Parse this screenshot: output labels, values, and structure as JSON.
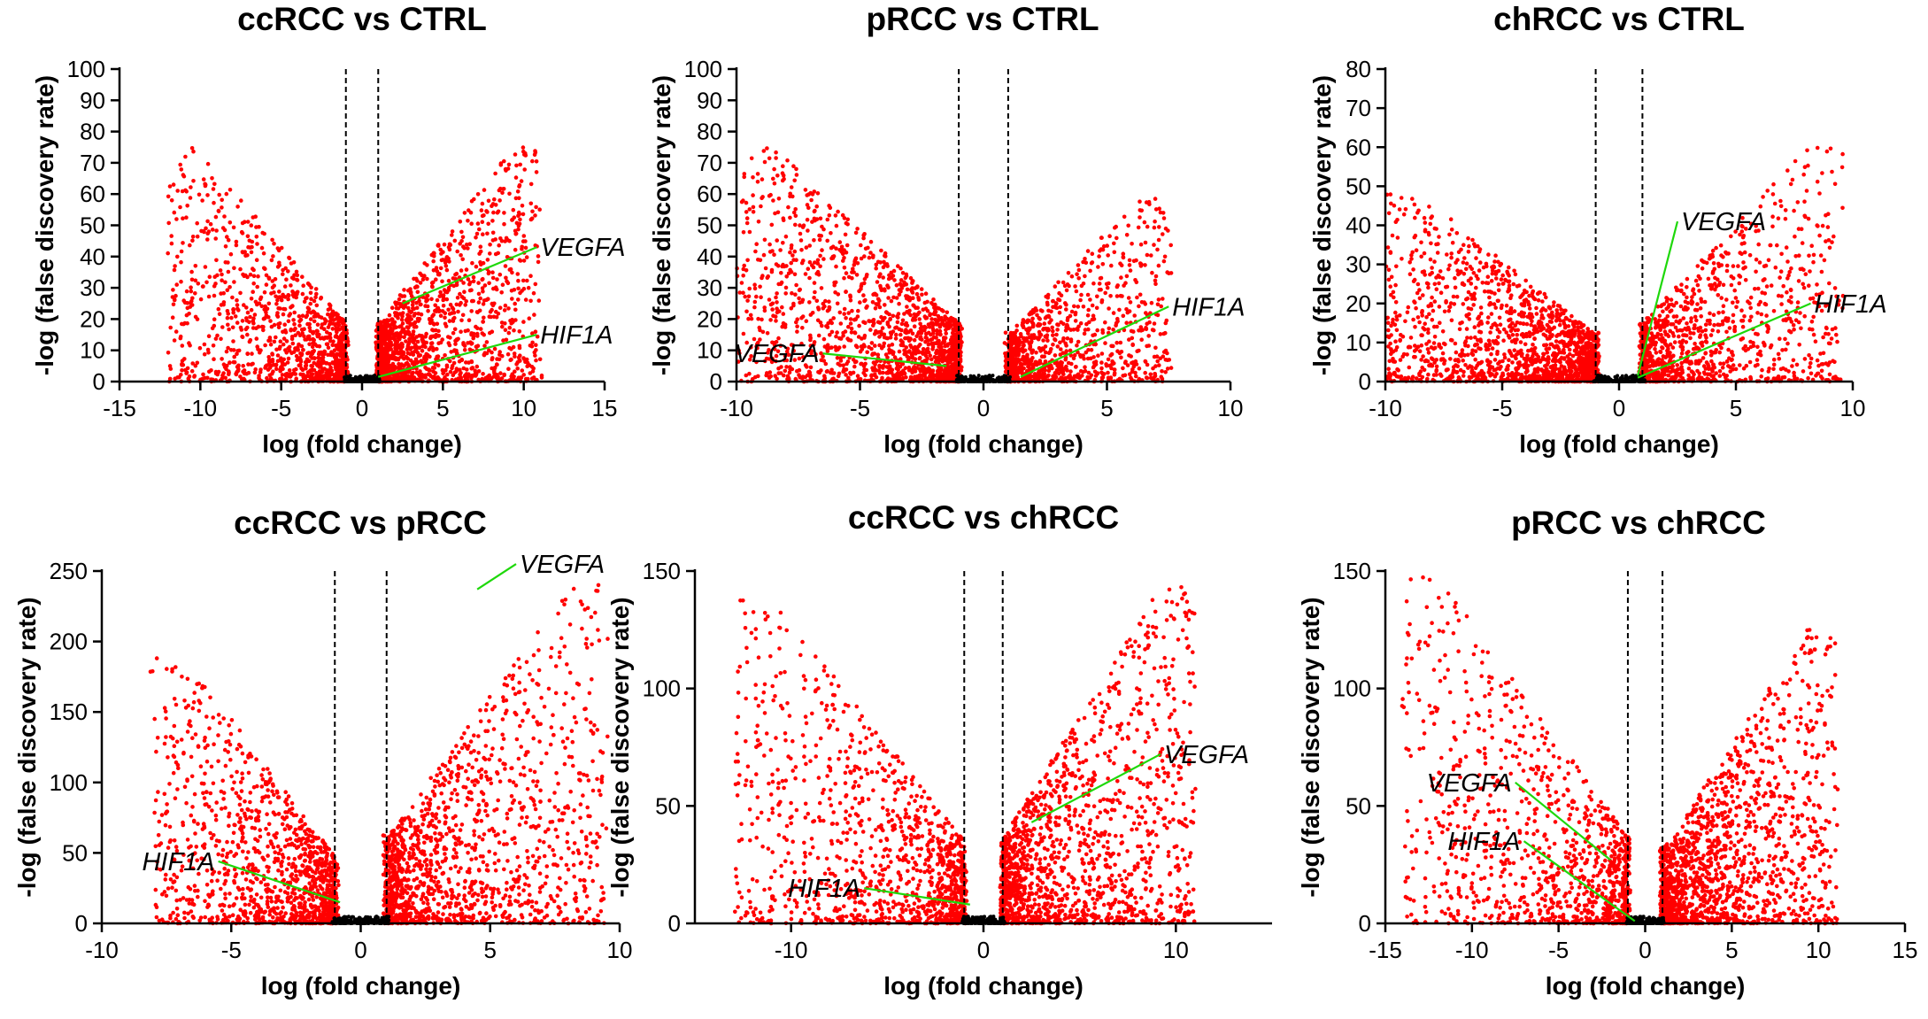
{
  "colors": {
    "significant": "#ff0000",
    "nonsignificant": "#000000",
    "leader": "#1ed80a"
  },
  "chart_data": [
    {
      "type": "scatter",
      "title": "ccRCC vs CTRL",
      "xlabel": "log (fold change)",
      "ylabel": "-log (false discovery rate)",
      "xlim": [
        -15,
        15
      ],
      "ylim": [
        0,
        100
      ],
      "xticks": [
        -15,
        -10,
        -5,
        0,
        5,
        10,
        15
      ],
      "yticks": [
        0,
        10,
        20,
        30,
        40,
        50,
        60,
        70,
        80,
        90,
        100
      ],
      "fc_cutoffs": [
        -1,
        1
      ],
      "distribution": {
        "left_x_range": [
          -12,
          -1
        ],
        "right_x_range": [
          1,
          11
        ],
        "left_ymax": 75,
        "right_ymax": 75,
        "left_density": 0.42,
        "right_density": 0.58
      },
      "annotations": [
        {
          "label": "VEGFA",
          "point": [
            2.5,
            25
          ],
          "label_at": [
            10.8,
            43
          ]
        },
        {
          "label": "HIF1A",
          "point": [
            1.0,
            1.5
          ],
          "label_at": [
            10.8,
            15
          ]
        }
      ]
    },
    {
      "type": "scatter",
      "title": "pRCC vs CTRL",
      "xlabel": "log (fold change)",
      "ylabel": "-log (false discovery rate)",
      "xlim": [
        -10,
        10
      ],
      "ylim": [
        0,
        100
      ],
      "xticks": [
        -10,
        -5,
        0,
        5,
        10
      ],
      "yticks": [
        0,
        10,
        20,
        30,
        40,
        50,
        60,
        70,
        80,
        90,
        100
      ],
      "fc_cutoffs": [
        -1,
        1
      ],
      "distribution": {
        "left_x_range": [
          -10,
          -1
        ],
        "right_x_range": [
          1,
          7.5
        ],
        "left_ymax": 75,
        "right_ymax": 60,
        "left_density": 0.6,
        "right_density": 0.4
      },
      "annotations": [
        {
          "label": "VEGFA",
          "point": [
            -1.5,
            5
          ],
          "label_at": [
            -6.5,
            9
          ]
        },
        {
          "label": "HIF1A",
          "point": [
            1.5,
            1.5
          ],
          "label_at": [
            7.5,
            24
          ]
        }
      ]
    },
    {
      "type": "scatter",
      "title": "chRCC vs CTRL",
      "xlabel": "log (fold change)",
      "ylabel": "-log (false discovery rate)",
      "xlim": [
        -10,
        10
      ],
      "ylim": [
        0,
        80
      ],
      "xticks": [
        -10,
        -5,
        0,
        5,
        10
      ],
      "yticks": [
        0,
        10,
        20,
        30,
        40,
        50,
        60,
        70,
        80
      ],
      "fc_cutoffs": [
        -1,
        1
      ],
      "distribution": {
        "left_x_range": [
          -10,
          -1
        ],
        "right_x_range": [
          1,
          9.5
        ],
        "left_ymax": 48,
        "right_ymax": 60,
        "left_density": 0.6,
        "right_density": 0.4
      },
      "annotations": [
        {
          "label": "VEGFA",
          "point": [
            0.8,
            1.5
          ],
          "label_at": [
            2.5,
            41
          ]
        },
        {
          "label": "HIF1A",
          "point": [
            0.8,
            1.0
          ],
          "label_at": [
            8.2,
            20
          ]
        }
      ]
    },
    {
      "type": "scatter",
      "title": "ccRCC vs pRCC",
      "xlabel": "log (fold change)",
      "ylabel": "-log (false discovery rate)",
      "xlim": [
        -10,
        10
      ],
      "ylim": [
        0,
        250
      ],
      "xticks": [
        -10,
        -5,
        0,
        5,
        10
      ],
      "yticks": [
        0,
        50,
        100,
        150,
        200,
        250
      ],
      "fc_cutoffs": [
        -1,
        1
      ],
      "distribution": {
        "left_x_range": [
          -8,
          -1
        ],
        "right_x_range": [
          1,
          9.5
        ],
        "left_ymax": 190,
        "right_ymax": 240,
        "left_density": 0.45,
        "right_density": 0.55
      },
      "annotations": [
        {
          "label": "VEGFA",
          "point": [
            4.5,
            237
          ],
          "label_at": [
            6,
            255
          ]
        },
        {
          "label": "HIF1A",
          "point": [
            -0.8,
            15
          ],
          "label_at": [
            -5.5,
            44
          ]
        }
      ]
    },
    {
      "type": "scatter",
      "title": "ccRCC vs chRCC",
      "xlabel": "log (fold change)",
      "ylabel": "-log (false discovery rate)",
      "xlim": [
        -15,
        15
      ],
      "ylim": [
        0,
        150
      ],
      "xticks": [
        -10,
        0,
        10
      ],
      "yticks": [
        0,
        50,
        100,
        150
      ],
      "fc_cutoffs": [
        -1,
        1
      ],
      "distribution": {
        "left_x_range": [
          -13,
          -1
        ],
        "right_x_range": [
          1,
          11
        ],
        "left_ymax": 140,
        "right_ymax": 145,
        "left_density": 0.45,
        "right_density": 0.55
      },
      "annotations": [
        {
          "label": "VEGFA",
          "point": [
            2.5,
            43
          ],
          "label_at": [
            9.2,
            72
          ]
        },
        {
          "label": "HIF1A",
          "point": [
            -0.7,
            8
          ],
          "label_at": [
            -6.2,
            15
          ]
        }
      ]
    },
    {
      "type": "scatter",
      "title": "pRCC vs chRCC",
      "xlabel": "log (fold change)",
      "ylabel": "-log (false discovery rate)",
      "xlim": [
        -15,
        15
      ],
      "ylim": [
        0,
        150
      ],
      "xticks": [
        -15,
        -10,
        -5,
        0,
        5,
        10,
        15
      ],
      "yticks": [
        0,
        50,
        100,
        150
      ],
      "fc_cutoffs": [
        -1,
        1
      ],
      "distribution": {
        "left_x_range": [
          -14,
          -1
        ],
        "right_x_range": [
          1,
          11
        ],
        "left_ymax": 148,
        "right_ymax": 125,
        "left_density": 0.42,
        "right_density": 0.58
      },
      "annotations": [
        {
          "label": "VEGFA",
          "point": [
            -2,
            27
          ],
          "label_at": [
            -7.5,
            60
          ]
        },
        {
          "label": "HIF1A",
          "point": [
            -0.6,
            1
          ],
          "label_at": [
            -7,
            35
          ]
        }
      ]
    }
  ]
}
